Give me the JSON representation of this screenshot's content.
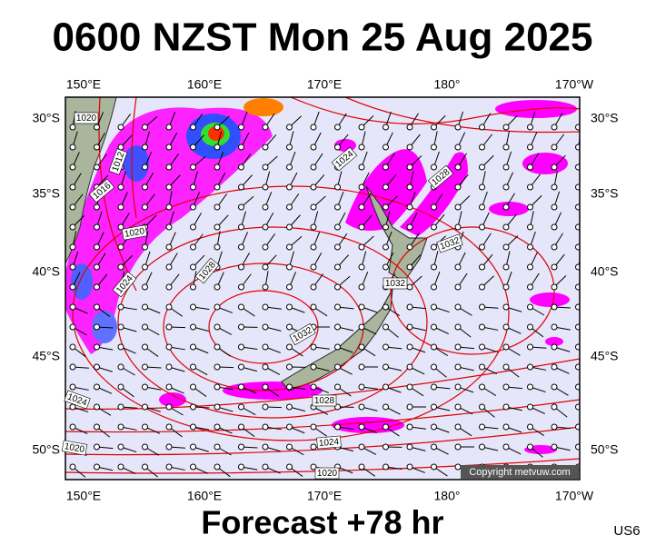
{
  "header": {
    "title": "0600 NZST Mon 25 Aug 2025"
  },
  "axes": {
    "longitudes": [
      "150°E",
      "160°E",
      "170°E",
      "180°",
      "170°W"
    ],
    "latitudes": [
      "30°S",
      "35°S",
      "40°S",
      "45°S",
      "50°S"
    ]
  },
  "isobar_labels": [
    "1020",
    "1012",
    "1016",
    "1020",
    "1024",
    "1028",
    "1024",
    "1028",
    "1032",
    "1032",
    "1032",
    "1024",
    "1028",
    "1024",
    "1020",
    "1020"
  ],
  "copyright": "Copyright metvuw.com",
  "footer": {
    "forecast": "Forecast +78 hr",
    "code": "US6"
  }
}
